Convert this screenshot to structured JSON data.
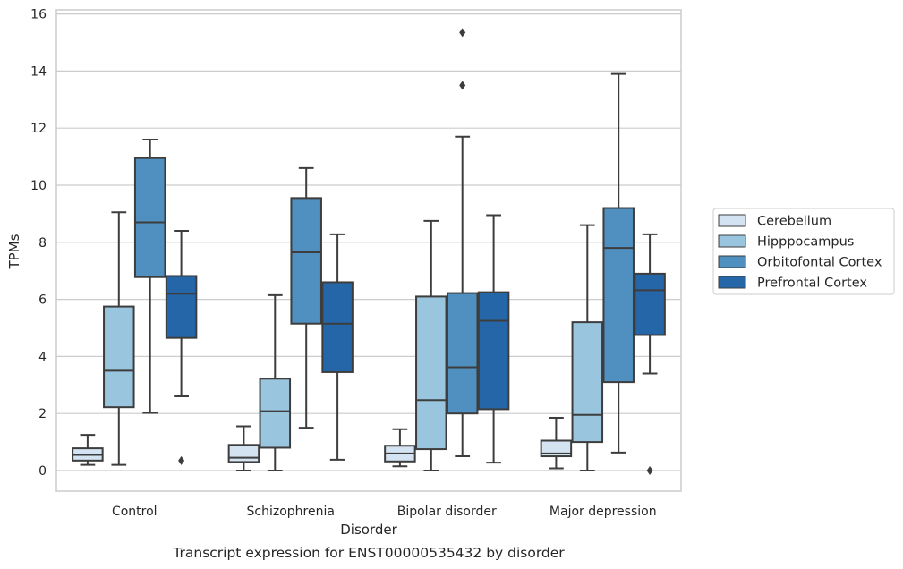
{
  "chart_data": {
    "type": "box",
    "title": "",
    "caption": "Transcript expression for ENST00000535432 by disorder",
    "xlabel": "Disorder",
    "ylabel": "TPMs",
    "ylim": [
      -0.7,
      16.15
    ],
    "yticks": [
      0,
      2,
      4,
      6,
      8,
      10,
      12,
      14,
      16
    ],
    "grid": "horizontal",
    "legend_position": "right",
    "categories": [
      "Control",
      "Schizophrenia",
      "Bipolar disorder",
      "Major depression"
    ],
    "series": [
      {
        "name": "Cerebellum",
        "color": "#d4e3f2",
        "boxes": [
          {
            "whislo": 0.2,
            "q1": 0.35,
            "med": 0.55,
            "q3": 0.78,
            "whishi": 1.25,
            "fliers": []
          },
          {
            "whislo": 0.0,
            "q1": 0.3,
            "med": 0.45,
            "q3": 0.9,
            "whishi": 1.55,
            "fliers": []
          },
          {
            "whislo": 0.15,
            "q1": 0.32,
            "med": 0.6,
            "q3": 0.87,
            "whishi": 1.45,
            "fliers": []
          },
          {
            "whislo": 0.08,
            "q1": 0.5,
            "med": 0.6,
            "q3": 1.05,
            "whishi": 1.85,
            "fliers": []
          }
        ]
      },
      {
        "name": "Hipppocampus",
        "color": "#9ac5de",
        "boxes": [
          {
            "whislo": 0.2,
            "q1": 2.22,
            "med": 3.5,
            "q3": 5.75,
            "whishi": 9.05,
            "fliers": []
          },
          {
            "whislo": 0.0,
            "q1": 0.8,
            "med": 2.08,
            "q3": 3.22,
            "whishi": 6.15,
            "fliers": []
          },
          {
            "whislo": 0.0,
            "q1": 0.75,
            "med": 2.47,
            "q3": 6.1,
            "whishi": 8.75,
            "fliers": []
          },
          {
            "whislo": 0.0,
            "q1": 1.0,
            "med": 1.95,
            "q3": 5.2,
            "whishi": 8.6,
            "fliers": []
          }
        ]
      },
      {
        "name": "Orbitofontal Cortex",
        "color": "#4f90c0",
        "boxes": [
          {
            "whislo": 2.02,
            "q1": 6.78,
            "med": 8.7,
            "q3": 10.95,
            "whishi": 11.6,
            "fliers": []
          },
          {
            "whislo": 1.5,
            "q1": 5.15,
            "med": 7.65,
            "q3": 9.55,
            "whishi": 10.6,
            "fliers": []
          },
          {
            "whislo": 0.5,
            "q1": 2.0,
            "med": 3.62,
            "q3": 6.22,
            "whishi": 11.7,
            "fliers": [
              13.5,
              15.35
            ]
          },
          {
            "whislo": 0.63,
            "q1": 3.1,
            "med": 7.8,
            "q3": 9.2,
            "whishi": 13.9,
            "fliers": []
          }
        ]
      },
      {
        "name": "Prefrontal Cortex",
        "color": "#2566a8",
        "boxes": [
          {
            "whislo": 2.6,
            "q1": 4.65,
            "med": 6.2,
            "q3": 6.82,
            "whishi": 8.4,
            "fliers": [
              0.35
            ]
          },
          {
            "whislo": 0.38,
            "q1": 3.45,
            "med": 5.15,
            "q3": 6.6,
            "whishi": 8.28,
            "fliers": []
          },
          {
            "whislo": 0.28,
            "q1": 2.15,
            "med": 5.25,
            "q3": 6.25,
            "whishi": 8.95,
            "fliers": []
          },
          {
            "whislo": 3.4,
            "q1": 4.75,
            "med": 6.32,
            "q3": 6.9,
            "whishi": 8.28,
            "fliers": [
              0.0
            ]
          }
        ]
      }
    ]
  }
}
